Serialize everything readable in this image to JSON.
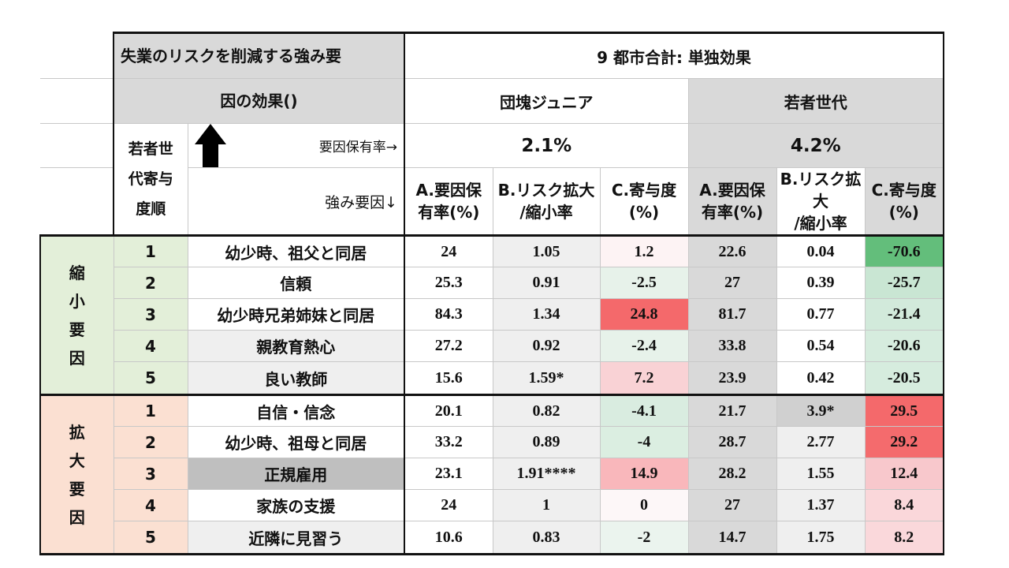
{
  "title": "失業のリスクを削減する強み要因の効果()",
  "title_line1": "失業のリスクを削減する強み要",
  "title_line2": "因の効果()",
  "summary_header": "9 都市合計: 単独効果",
  "cohorts": [
    "団塊ジュニア",
    "若者世代"
  ],
  "rank_label": [
    "若者世",
    "代寄与",
    "度順"
  ],
  "prevalence_label": "要因保有率→",
  "strength_label": "強み要因↓",
  "prevalence_values": [
    "2.1%",
    "4.2%"
  ],
  "col_headers": {
    "a": [
      "A.要因保",
      "有率(%)"
    ],
    "b": [
      "B.リスク拡大",
      "/縮小率"
    ],
    "c": [
      "C.寄与度",
      "(%)"
    ]
  },
  "groups": [
    {
      "label": [
        "縮",
        "小",
        "要",
        "因"
      ],
      "color": "#e3efd9"
    },
    {
      "label": [
        "拡",
        "大",
        "要",
        "因"
      ],
      "color": "#fbe0d2"
    }
  ],
  "rows": [
    {
      "rank": "1",
      "factor": "幼少時、祖父と同居",
      "a1": "24",
      "b1": "1.05",
      "c1": "1.2",
      "a2": "22.6",
      "b2": "0.04",
      "c2": "-70.6"
    },
    {
      "rank": "2",
      "factor": "信頼",
      "a1": "25.3",
      "b1": "0.91",
      "c1": "-2.5",
      "a2": "27",
      "b2": "0.39",
      "c2": "-25.7"
    },
    {
      "rank": "3",
      "factor": "幼少時兄弟姉妹と同居",
      "a1": "84.3",
      "b1": "1.34",
      "c1": "24.8",
      "a2": "81.7",
      "b2": "0.77",
      "c2": "-21.4"
    },
    {
      "rank": "4",
      "factor": "親教育熱心",
      "a1": "27.2",
      "b1": "0.92",
      "c1": "-2.4",
      "a2": "33.8",
      "b2": "0.54",
      "c2": "-20.6"
    },
    {
      "rank": "5",
      "factor": "良い教師",
      "a1": "15.6",
      "b1": "1.59*",
      "c1": "7.2",
      "a2": "23.9",
      "b2": "0.42",
      "c2": "-20.5"
    },
    {
      "rank": "1",
      "factor": "自信・信念",
      "a1": "20.1",
      "b1": "0.82",
      "c1": "-4.1",
      "a2": "21.7",
      "b2": "3.9*",
      "c2": "29.5"
    },
    {
      "rank": "2",
      "factor": "幼少時、祖母と同居",
      "a1": "33.2",
      "b1": "0.89",
      "c1": "-4",
      "a2": "28.7",
      "b2": "2.77",
      "c2": "29.2"
    },
    {
      "rank": "3",
      "factor": "正規雇用",
      "a1": "23.1",
      "b1": "1.91****",
      "c1": "14.9",
      "a2": "28.2",
      "b2": "1.55",
      "c2": "12.4"
    },
    {
      "rank": "4",
      "factor": "家族の支援",
      "a1": "24",
      "b1": "1",
      "c1": "0",
      "a2": "27",
      "b2": "1.37",
      "c2": "8.4"
    },
    {
      "rank": "5",
      "factor": "近隣に見習う",
      "a1": "10.6",
      "b1": "0.83",
      "c1": "-2",
      "a2": "14.7",
      "b2": "1.75",
      "c2": "8.2"
    }
  ],
  "colors": {
    "c1": [
      "#fdf3f4",
      "#e7f2ea",
      "#f4696b",
      "#e7f2ea",
      "#f9d2d5",
      "#d9ece0",
      "#dbeee1",
      "#f9b7bb",
      "#fdf7f8",
      "#ebf4ee"
    ],
    "c2": [
      "#63be7b",
      "#c9e6d3",
      "#d2eadb",
      "#d6ecde",
      "#d6ecde",
      "#f4696b",
      "#f46b6d",
      "#f8c8cc",
      "#fad7da",
      "#fad8db"
    ],
    "factor_bg": [
      "#ffffff",
      "#ffffff",
      "#ffffff",
      "#efefef",
      "#efefef",
      "#ffffff",
      "#ffffff",
      "#bfbfbf",
      "#ffffff",
      "#efefef"
    ],
    "b2_bg": [
      "#ffffff",
      "#ffffff",
      "#ffffff",
      "#ffffff",
      "#ffffff",
      "#d0d0d0",
      "#efefef",
      "#efefef",
      "#efefef",
      "#efefef"
    ]
  }
}
